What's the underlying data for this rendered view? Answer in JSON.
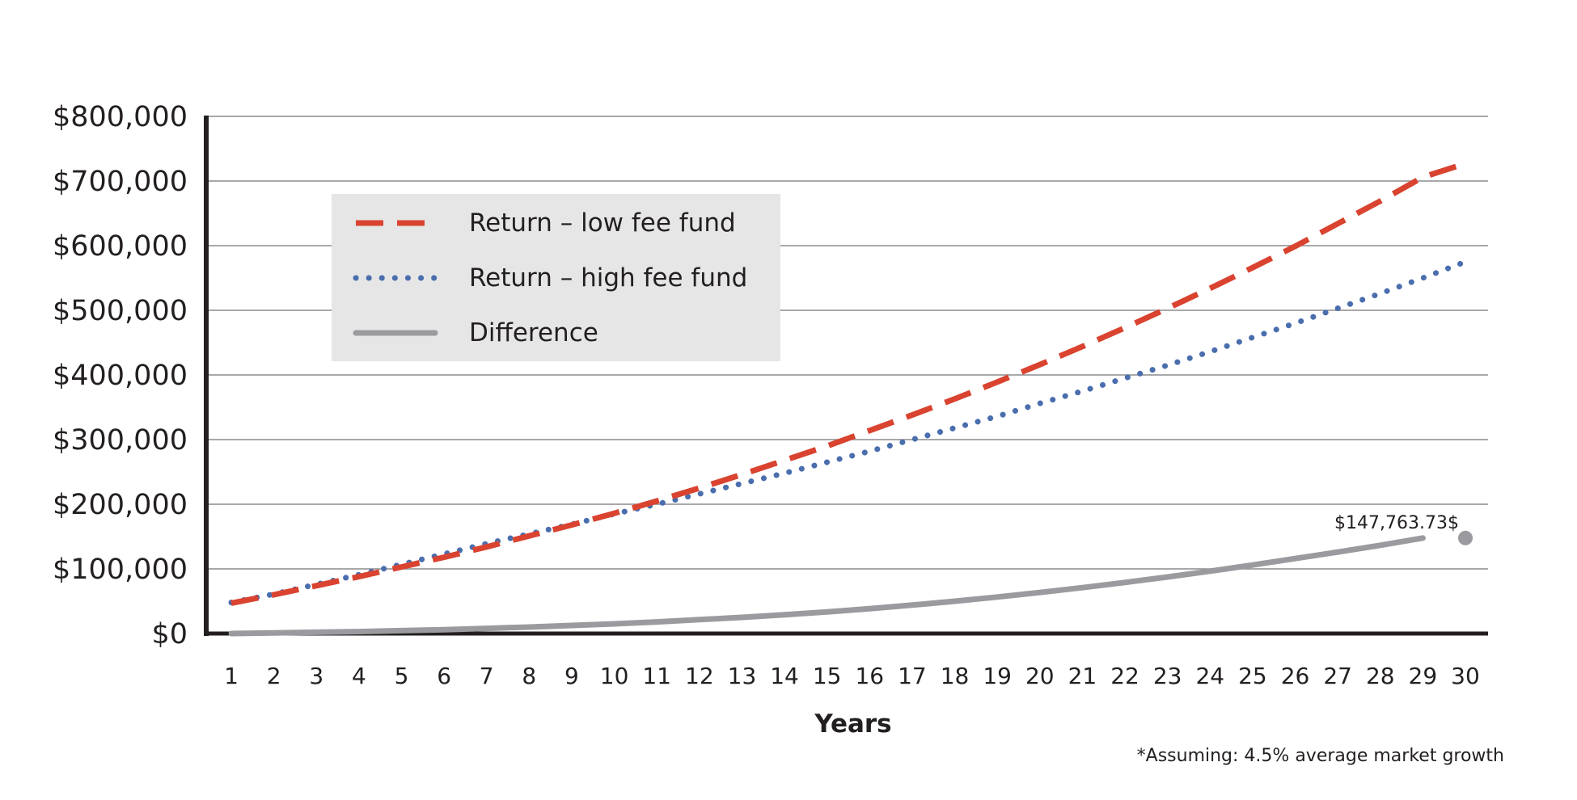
{
  "chart_data": {
    "type": "line",
    "title": "",
    "xlabel": "Years",
    "ylabel": "",
    "x": [
      1,
      2,
      3,
      4,
      5,
      6,
      7,
      8,
      9,
      10,
      11,
      12,
      13,
      14,
      15,
      16,
      17,
      18,
      19,
      20,
      21,
      22,
      23,
      24,
      25,
      26,
      27,
      28,
      29,
      30
    ],
    "ylim": [
      0,
      800000
    ],
    "y_ticks": [
      "$0",
      "$100,000",
      "$200,000",
      "$300,000",
      "$400,000",
      "$500,000",
      "$600,000",
      "$700,000",
      "$800,000"
    ],
    "grid": "horizontal",
    "legend_position": "upper-left",
    "series": [
      {
        "name": "Return – low fee fund",
        "style": "dashed",
        "color": "#d9432f",
        "values": [
          47000,
          60000,
          74000,
          88000,
          103000,
          118000,
          134000,
          151000,
          168000,
          186000,
          205000,
          225000,
          246000,
          268000,
          290000,
          314000,
          338000,
          363000,
          389000,
          416000,
          444000,
          473000,
          503000,
          534000,
          566000,
          599000,
          634000,
          669000,
          706000,
          727000
        ]
      },
      {
        "name": "Return – high fee fund",
        "style": "dotted",
        "color": "#4a6ead",
        "values": [
          48000,
          61000,
          76000,
          91000,
          107000,
          123000,
          139000,
          154000,
          169000,
          185000,
          200000,
          216000,
          232000,
          248000,
          265000,
          282000,
          300000,
          318000,
          336000,
          356000,
          375000,
          395000,
          415000,
          436000,
          458000,
          480000,
          503000,
          526000,
          550000,
          575000
        ]
      },
      {
        "name": "Difference",
        "style": "solid",
        "color": "#9b9a9e",
        "values": [
          0,
          1000,
          2000,
          3000,
          4500,
          6000,
          8000,
          10000,
          12500,
          15000,
          18000,
          21500,
          25000,
          29000,
          33500,
          38500,
          44000,
          50000,
          56500,
          63500,
          71000,
          79000,
          87500,
          96500,
          106000,
          116000,
          126000,
          136500,
          147763.73,
          147763.73
        ]
      }
    ],
    "annotations": [
      {
        "text": "$147,763.73$",
        "series": "Difference",
        "x": 30,
        "y": 147763.73
      }
    ],
    "footnote": "*Assuming: 4.5% average market growth"
  }
}
